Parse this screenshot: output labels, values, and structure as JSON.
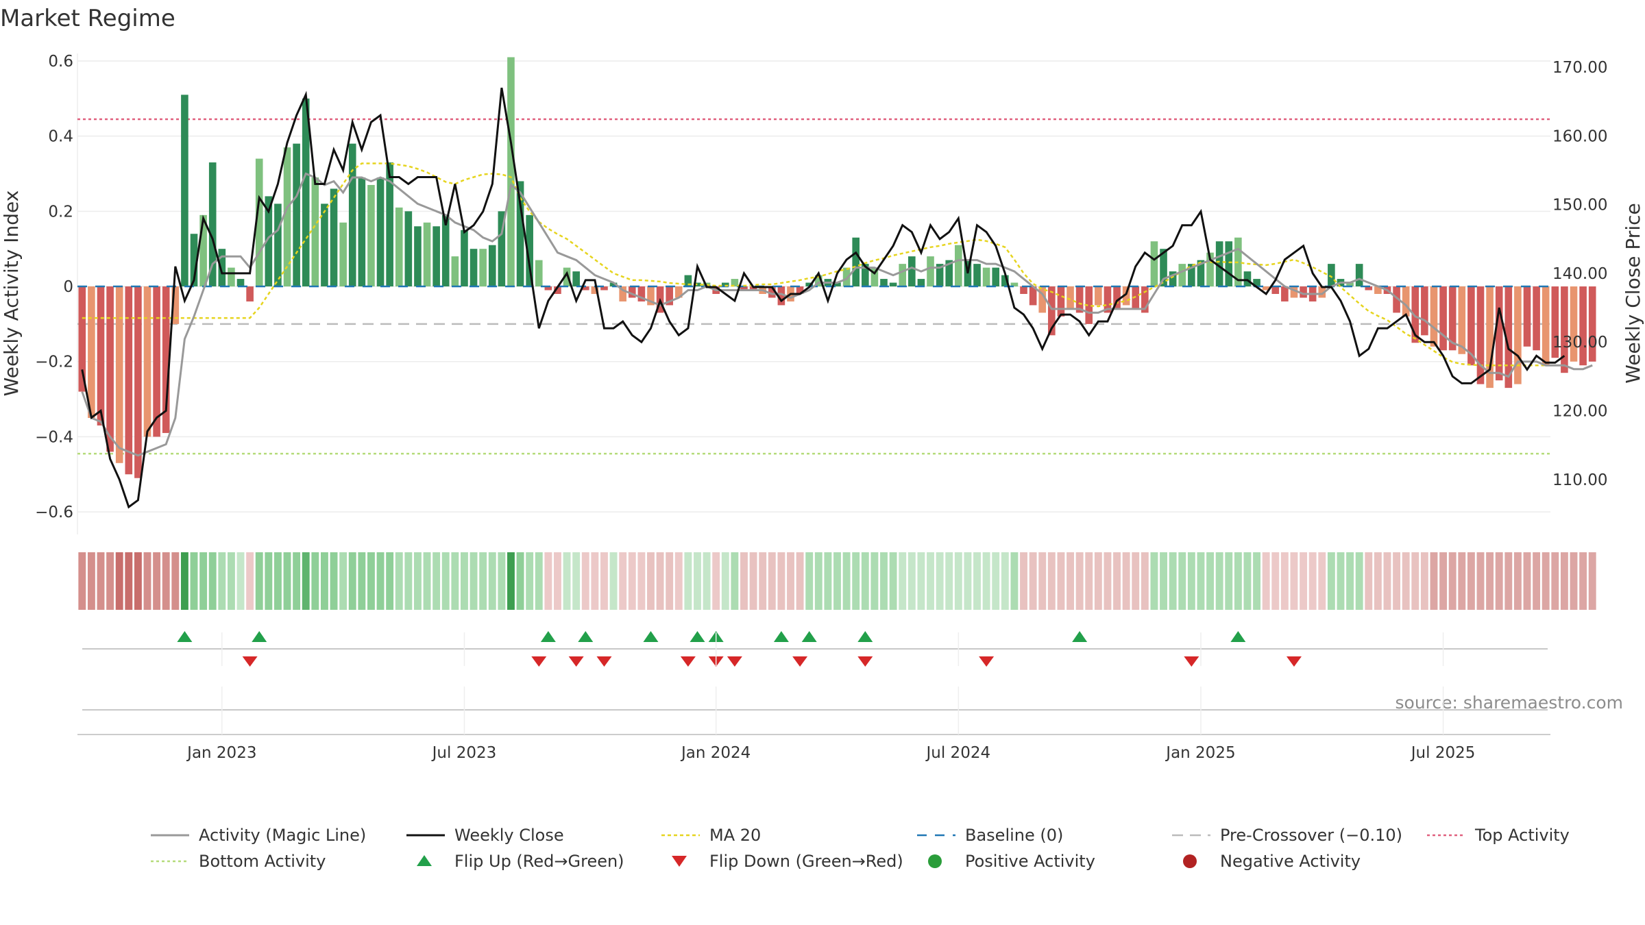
{
  "chart_data": {
    "type": "bar+line",
    "title": "Market Regime",
    "ylabel_left": "Weekly Activity Index",
    "ylabel_right": "Weekly Close Price",
    "ylim_left": [
      -0.66,
      0.62
    ],
    "ylim_right": [
      102,
      172
    ],
    "left_ticks": [
      {
        "value": 0.6,
        "label": "0.6"
      },
      {
        "value": 0.4,
        "label": "0.4"
      },
      {
        "value": 0.2,
        "label": "0.2"
      },
      {
        "value": 0,
        "label": "0"
      },
      {
        "value": -0.2,
        "label": "−0.2"
      },
      {
        "value": -0.4,
        "label": "−0.4"
      },
      {
        "value": -0.6,
        "label": "−0.6"
      }
    ],
    "right_ticks": [
      {
        "value": 170,
        "label": "170.00"
      },
      {
        "value": 160,
        "label": "160.00"
      },
      {
        "value": 150,
        "label": "150.00"
      },
      {
        "value": 140,
        "label": "140.00"
      },
      {
        "value": 130,
        "label": "130.00"
      },
      {
        "value": 120,
        "label": "120.00"
      },
      {
        "value": 110,
        "label": "110.00"
      }
    ],
    "x_ticks": [
      {
        "week": 15,
        "label": "Jan 2023"
      },
      {
        "week": 41,
        "label": "Jul 2023"
      },
      {
        "week": 68,
        "label": "Jan 2024"
      },
      {
        "week": 94,
        "label": "Jul 2024"
      },
      {
        "week": 120,
        "label": "Jan 2025"
      },
      {
        "week": 146,
        "label": "Jul 2025"
      }
    ],
    "weeks": 158,
    "activity": [
      -0.28,
      -0.35,
      -0.37,
      -0.44,
      -0.47,
      -0.5,
      -0.51,
      -0.4,
      -0.4,
      -0.39,
      -0.1,
      0.51,
      0.14,
      0.19,
      0.33,
      0.1,
      0.05,
      0.02,
      -0.04,
      0.34,
      0.24,
      0.22,
      0.37,
      0.38,
      0.5,
      0.29,
      0.22,
      0.26,
      0.17,
      0.38,
      0.29,
      0.27,
      0.29,
      0.33,
      0.21,
      0.2,
      0.16,
      0.17,
      0.16,
      0.19,
      0.08,
      0.15,
      0.1,
      0.1,
      0.11,
      0.2,
      0.61,
      0.28,
      0.19,
      0.07,
      -0.01,
      -0.02,
      0.05,
      0.04,
      -0.01,
      -0.02,
      -0.01,
      0.01,
      -0.04,
      -0.03,
      -0.04,
      -0.05,
      -0.07,
      -0.05,
      -0.03,
      0.03,
      0.01,
      0.01,
      -0.02,
      0.01,
      0.02,
      -0.01,
      -0.01,
      -0.02,
      -0.03,
      -0.05,
      -0.04,
      -0.02,
      0.01,
      0.03,
      0.02,
      0.01,
      0.05,
      0.13,
      0.06,
      0.05,
      0.02,
      0.01,
      0.06,
      0.08,
      0.02,
      0.08,
      0.06,
      0.07,
      0.11,
      0.07,
      0.06,
      0.05,
      0.05,
      0.03,
      0.01,
      -0.02,
      -0.05,
      -0.07,
      -0.13,
      -0.08,
      -0.06,
      -0.07,
      -0.1,
      -0.05,
      -0.07,
      -0.06,
      -0.05,
      -0.06,
      -0.07,
      0.12,
      0.1,
      0.04,
      0.06,
      0.06,
      0.07,
      0.09,
      0.12,
      0.12,
      0.13,
      0.04,
      0.02,
      -0.01,
      -0.02,
      -0.04,
      -0.03,
      -0.03,
      -0.04,
      -0.03,
      0.06,
      0.02,
      0.01,
      0.06,
      -0.01,
      -0.02,
      -0.02,
      -0.07,
      -0.08,
      -0.15,
      -0.13,
      -0.16,
      -0.17,
      -0.17,
      -0.18,
      -0.21,
      -0.26,
      -0.27,
      -0.25,
      -0.27,
      -0.26,
      -0.16,
      -0.17,
      -0.21,
      -0.19,
      -0.23,
      -0.2,
      -0.21,
      -0.2
    ],
    "magic_line": [
      -0.28,
      -0.35,
      -0.36,
      -0.4,
      -0.43,
      -0.44,
      -0.45,
      -0.44,
      -0.43,
      -0.42,
      -0.35,
      -0.14,
      -0.08,
      -0.01,
      0.06,
      0.08,
      0.08,
      0.08,
      0.05,
      0.09,
      0.13,
      0.15,
      0.21,
      0.24,
      0.3,
      0.29,
      0.27,
      0.28,
      0.25,
      0.29,
      0.29,
      0.28,
      0.29,
      0.28,
      0.26,
      0.24,
      0.22,
      0.21,
      0.2,
      0.19,
      0.17,
      0.16,
      0.15,
      0.13,
      0.12,
      0.14,
      0.27,
      0.25,
      0.21,
      0.17,
      0.13,
      0.09,
      0.08,
      0.07,
      0.05,
      0.03,
      0.02,
      0.01,
      -0.01,
      -0.02,
      -0.03,
      -0.04,
      -0.05,
      -0.04,
      -0.03,
      -0.01,
      -0.01,
      0,
      -0.01,
      -0.01,
      -0.01,
      -0.01,
      -0.01,
      -0.01,
      -0.02,
      -0.02,
      -0.03,
      -0.02,
      -0.01,
      0.01,
      0.01,
      0.01,
      0.02,
      0.05,
      0.05,
      0.05,
      0.04,
      0.03,
      0.04,
      0.05,
      0.04,
      0.05,
      0.05,
      0.06,
      0.07,
      0.07,
      0.07,
      0.06,
      0.06,
      0.05,
      0.04,
      0.02,
      0,
      -0.02,
      -0.06,
      -0.06,
      -0.06,
      -0.06,
      -0.07,
      -0.07,
      -0.06,
      -0.06,
      -0.06,
      -0.06,
      -0.06,
      -0.02,
      0.02,
      0.03,
      0.04,
      0.05,
      0.06,
      0.07,
      0.08,
      0.09,
      0.1,
      0.08,
      0.06,
      0.04,
      0.02,
      0,
      -0.01,
      -0.02,
      -0.02,
      -0.02,
      0,
      0.01,
      0.01,
      0.02,
      0.01,
      0,
      -0.01,
      -0.03,
      -0.05,
      -0.08,
      -0.09,
      -0.11,
      -0.13,
      -0.15,
      -0.16,
      -0.18,
      -0.21,
      -0.23,
      -0.23,
      -0.24,
      -0.2,
      -0.2,
      -0.2,
      -0.21,
      -0.21,
      -0.21,
      -0.22,
      -0.22,
      -0.21
    ],
    "weekly_close": [
      126,
      119,
      120,
      113,
      110,
      106,
      107,
      117,
      119,
      120,
      141,
      136,
      139,
      148,
      145,
      140,
      140,
      140,
      140,
      151,
      149,
      153,
      159,
      163,
      166,
      153,
      153,
      158,
      155,
      162,
      158,
      162,
      163,
      154,
      154,
      153,
      154,
      154,
      154,
      147,
      153,
      146,
      147,
      149,
      153,
      167,
      159,
      150,
      141,
      132,
      136,
      138,
      140,
      136,
      139,
      139,
      132,
      132,
      133,
      131,
      130,
      132,
      136,
      133,
      131,
      132,
      141,
      138,
      138,
      137,
      136,
      140,
      138,
      138,
      138,
      136,
      137,
      137,
      138,
      140,
      136,
      140,
      142,
      143,
      141,
      140,
      142,
      144,
      147,
      146,
      143,
      147,
      145,
      146,
      148,
      140,
      147,
      146,
      144,
      140,
      135,
      134,
      132,
      129,
      132,
      134,
      134,
      133,
      131,
      133,
      133,
      136,
      137,
      141,
      143,
      142,
      143,
      144,
      147,
      147,
      149,
      142,
      141,
      140,
      139,
      139,
      138,
      137,
      139,
      142,
      143,
      144,
      140,
      138,
      138,
      136,
      133,
      128,
      129,
      132,
      132,
      133,
      134,
      131,
      130,
      130,
      128,
      125,
      124,
      124,
      125,
      126,
      135,
      129,
      128,
      126,
      128,
      127,
      127,
      128
    ],
    "ma20": [
      133.5,
      133.5,
      133.5,
      133.5,
      133.5,
      133.5,
      133.5,
      133.5,
      133.5,
      133.5,
      133.5,
      133.5,
      133.5,
      133.5,
      133.5,
      133.5,
      133.5,
      133.5,
      133.5,
      135,
      137,
      139,
      141,
      143,
      145,
      147,
      149,
      151,
      153,
      155,
      156,
      156,
      156,
      156,
      155.8,
      155.6,
      155.2,
      154.7,
      154,
      153.3,
      153,
      153.6,
      154,
      154.4,
      154.5,
      154.4,
      154,
      151,
      149,
      147.5,
      146.5,
      145.7,
      145,
      144,
      143,
      142,
      141,
      140,
      139.5,
      139,
      139,
      138.9,
      138.8,
      138.6,
      138.5,
      138.4,
      138.4,
      138.3,
      138.2,
      138.2,
      138.2,
      138.2,
      138.3,
      138.4,
      138.4,
      138.6,
      138.8,
      139,
      139.3,
      139.5,
      139.9,
      140.3,
      140.6,
      141,
      141.5,
      141.9,
      142.2,
      142.6,
      142.9,
      143.2,
      143.5,
      143.8,
      144,
      144.3,
      144.5,
      144.7,
      144.9,
      144.7,
      144.3,
      143.8,
      142,
      140,
      138.5,
      137.7,
      137.3,
      136.7,
      136.2,
      135.6,
      135.3,
      135.2,
      135.4,
      135.7,
      136,
      136.6,
      137.3,
      138,
      138.7,
      139.5,
      140.3,
      141.1,
      141.6,
      141.6,
      141.7,
      141.6,
      141.6,
      141.4,
      141.3,
      141.2,
      141.4,
      141.7,
      142,
      141.5,
      140.9,
      140.2,
      139.5,
      138,
      136.8,
      135.6,
      134.5,
      133.8,
      133.2,
      132.2,
      131.2,
      130.5,
      129.6,
      128.7,
      127.8,
      127.1,
      126.8,
      126.7,
      126.6,
      126.6,
      126.6,
      126.6,
      126.6,
      126.6,
      126.6,
      126.6,
      126.6
    ],
    "ribbon_shade": [
      3,
      3,
      3,
      3,
      4,
      4,
      4,
      3,
      3,
      3,
      3,
      4,
      2,
      2,
      2,
      1,
      1,
      0,
      0,
      2,
      2,
      2,
      2,
      2,
      3,
      2,
      2,
      2,
      1,
      2,
      2,
      2,
      2,
      2,
      1,
      1,
      1,
      1,
      1,
      1,
      1,
      1,
      1,
      1,
      1,
      1,
      4,
      2,
      1,
      1,
      0,
      0,
      0,
      0,
      0,
      0,
      0,
      0,
      0,
      0,
      0,
      1,
      1,
      1,
      0,
      0,
      0,
      0,
      0,
      0,
      1,
      1,
      1,
      1,
      1,
      1,
      1,
      1,
      1,
      1,
      1,
      1,
      1,
      1,
      1,
      1,
      1,
      1,
      0,
      0,
      0,
      0,
      0,
      0,
      0,
      0,
      0,
      0,
      0,
      0,
      1,
      1,
      1,
      1,
      1,
      1,
      1,
      1,
      1,
      1,
      1,
      1,
      1,
      1,
      1,
      1,
      1,
      1,
      1,
      1,
      1,
      1,
      1,
      1,
      1,
      1,
      1,
      0,
      0,
      0,
      0,
      0,
      0,
      0,
      1,
      1,
      1,
      1,
      1,
      1,
      1,
      1,
      1,
      1,
      1,
      2,
      2,
      2,
      2,
      2,
      2,
      2,
      2,
      2,
      2,
      2,
      2,
      2,
      2,
      2,
      2,
      2,
      2,
      2,
      2
    ],
    "flip_up_weeks": [
      11,
      19,
      50,
      54,
      61,
      66,
      68,
      75,
      78,
      84,
      107,
      124
    ],
    "flip_down_weeks": [
      18,
      49,
      53,
      56,
      65,
      68,
      70,
      77,
      84,
      97,
      119,
      130
    ],
    "levels": {
      "top_activity": 0.445,
      "bottom_activity": -0.445,
      "baseline": 0,
      "pre_crossover": -0.1
    },
    "colors": {
      "pos_strong": "#2e8b57",
      "pos_light": "#7fc17f",
      "neg_strong": "#d05a5a",
      "neg_light": "#e8956f",
      "magic_line": "#999999",
      "weekly_close": "#111111",
      "ma20": "#e6d41e",
      "baseline": "#1f77b4",
      "pre_crossover": "#bbbbbb",
      "top_activity": "#e0607e",
      "bottom_activity": "#b5db7a",
      "flip_up": "#22a04a",
      "flip_down": "#d62728",
      "positive_dot": "#2a9d3a",
      "negative_dot": "#b22222"
    },
    "legend": [
      {
        "key": "magic",
        "label": "Activity (Magic Line)"
      },
      {
        "key": "close",
        "label": "Weekly Close"
      },
      {
        "key": "ma20",
        "label": "MA 20"
      },
      {
        "key": "baseline",
        "label": "Baseline (0)"
      },
      {
        "key": "precross",
        "label": "Pre-Crossover (−0.10)"
      },
      {
        "key": "top",
        "label": "Top Activity"
      },
      {
        "key": "bottom",
        "label": "Bottom Activity"
      },
      {
        "key": "flipup",
        "label": "Flip Up (Red→Green)"
      },
      {
        "key": "flipdown",
        "label": "Flip Down (Green→Red)"
      },
      {
        "key": "posdot",
        "label": "Positive Activity"
      },
      {
        "key": "negdot",
        "label": "Negative Activity"
      }
    ],
    "source": "source: sharemaestro.com"
  }
}
